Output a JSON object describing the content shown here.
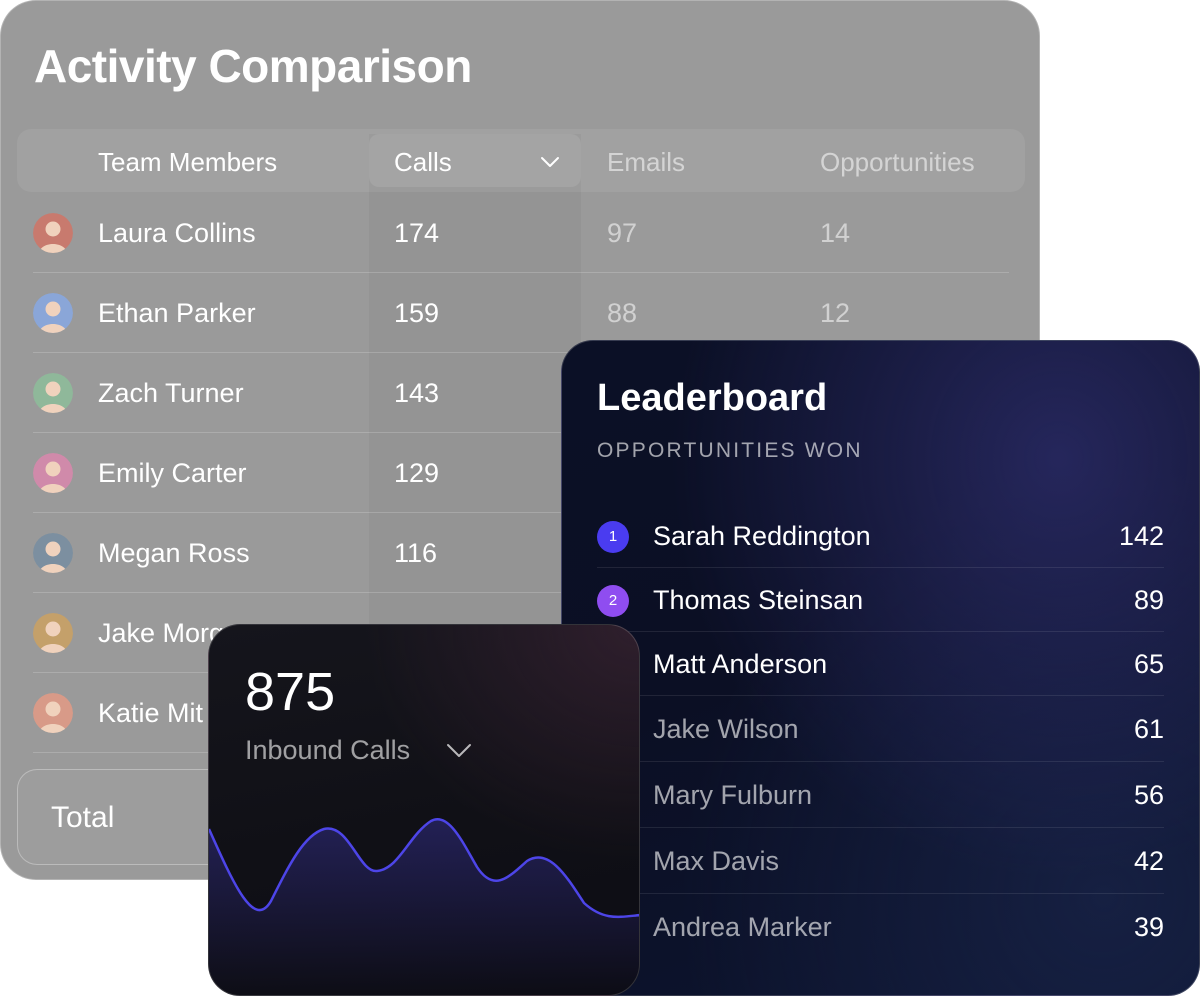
{
  "activity": {
    "title": "Activity Comparison",
    "columns": {
      "members": "Team Members",
      "calls": "Calls",
      "emails": "Emails",
      "opportunities": "Opportunities"
    },
    "rows": [
      {
        "name": "Laura Collins",
        "calls": "174",
        "emails": "97",
        "opportunities": "14",
        "avatar_color": "#c87a6e"
      },
      {
        "name": "Ethan Parker",
        "calls": "159",
        "emails": "88",
        "opportunities": "12",
        "avatar_color": "#8aa6d8"
      },
      {
        "name": "Zach Turner",
        "calls": "143",
        "emails": "",
        "opportunities": "",
        "avatar_color": "#8fb89a"
      },
      {
        "name": "Emily Carter",
        "calls": "129",
        "emails": "",
        "opportunities": "",
        "avatar_color": "#d08aaa"
      },
      {
        "name": "Megan Ross",
        "calls": "116",
        "emails": "",
        "opportunities": "",
        "avatar_color": "#7c8fa0"
      },
      {
        "name": "Jake Morg",
        "calls": "",
        "emails": "",
        "opportunities": "",
        "avatar_color": "#c4a06a"
      },
      {
        "name": "Katie Mit",
        "calls": "",
        "emails": "",
        "opportunities": "",
        "avatar_color": "#d89a88"
      }
    ],
    "total_label": "Total"
  },
  "leaderboard": {
    "title": "Leaderboard",
    "subtitle": "OPPORTUNITIES WON",
    "entries": [
      {
        "rank": "1",
        "name": "Sarah Reddington",
        "score": "142"
      },
      {
        "rank": "2",
        "name": "Thomas Steinsan",
        "score": "89"
      },
      {
        "rank": "",
        "name": "Matt Anderson",
        "score": "65"
      },
      {
        "rank": "",
        "name": "Jake Wilson",
        "score": "61"
      },
      {
        "rank": "",
        "name": "Mary Fulburn",
        "score": "56"
      },
      {
        "rank": "",
        "name": "Max Davis",
        "score": "42"
      },
      {
        "rank": "",
        "name": "Andrea Marker",
        "score": "39"
      }
    ],
    "rank_colors": [
      "#4a3cf0",
      "#8f4df0"
    ]
  },
  "inbound": {
    "value": "875",
    "label": "Inbound Calls",
    "line_color": "#4d45e8"
  }
}
